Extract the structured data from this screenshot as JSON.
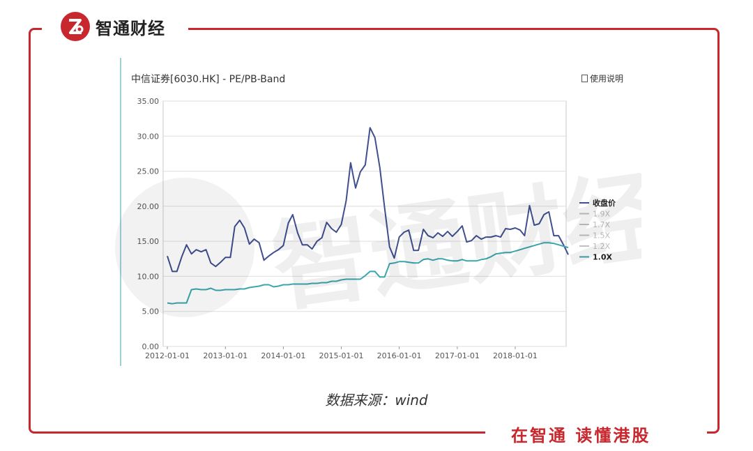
{
  "brand": {
    "name": "智通财经",
    "logo_icon": "zhitong-logo-icon"
  },
  "slogan": "在智通 读懂港股",
  "source_label": "数据来源：wind",
  "chart_header": {
    "title": "中信证券[6030.HK] - PE/PB-Band",
    "manual_label": "使用说明"
  },
  "watermark": {
    "text": "智通财经"
  },
  "colors": {
    "accent": "#c8282d",
    "close": "#3f4f8f",
    "band": "#3aa6ad",
    "faded": "#c0c0c0"
  },
  "chart_data": {
    "type": "line",
    "title": "",
    "xlabel": "",
    "ylabel": "",
    "ylim": [
      0,
      35
    ],
    "yticks": [
      "0.00",
      "5.00",
      "10.00",
      "15.00",
      "20.00",
      "25.00",
      "30.00",
      "35.00"
    ],
    "xticks": [
      "2012-01-01",
      "2013-01-01",
      "2014-01-01",
      "2015-01-01",
      "2016-01-01",
      "2017-01-01",
      "2018-01-01"
    ],
    "x_start": "2012-01-01",
    "x_end": "2018-12-01",
    "grid": true,
    "legend_position": "right",
    "legend": [
      {
        "name": "收盘价",
        "active": true
      },
      {
        "name": "1.9X",
        "active": false
      },
      {
        "name": "1.7X",
        "active": false
      },
      {
        "name": "1.5X",
        "active": false
      },
      {
        "name": "1.2X",
        "active": false
      },
      {
        "name": "1.0X",
        "active": true
      }
    ],
    "series": [
      {
        "name": "收盘价",
        "values": [
          [
            "2012-01-01",
            12.9
          ],
          [
            "2012-02-01",
            10.7
          ],
          [
            "2012-03-01",
            10.7
          ],
          [
            "2012-04-01",
            12.8
          ],
          [
            "2012-05-01",
            14.5
          ],
          [
            "2012-06-01",
            13.2
          ],
          [
            "2012-07-01",
            13.8
          ],
          [
            "2012-08-01",
            13.5
          ],
          [
            "2012-09-01",
            13.8
          ],
          [
            "2012-10-01",
            11.9
          ],
          [
            "2012-11-01",
            11.4
          ],
          [
            "2012-12-01",
            12.0
          ],
          [
            "2013-01-01",
            12.7
          ],
          [
            "2013-02-01",
            12.7
          ],
          [
            "2013-03-01",
            17.1
          ],
          [
            "2013-04-01",
            18.0
          ],
          [
            "2013-05-01",
            16.9
          ],
          [
            "2013-06-01",
            14.6
          ],
          [
            "2013-07-01",
            15.3
          ],
          [
            "2013-08-01",
            14.8
          ],
          [
            "2013-09-01",
            12.3
          ],
          [
            "2013-10-01",
            12.9
          ],
          [
            "2013-11-01",
            13.4
          ],
          [
            "2013-12-01",
            13.8
          ],
          [
            "2014-01-01",
            14.4
          ],
          [
            "2014-02-01",
            17.6
          ],
          [
            "2014-03-01",
            18.8
          ],
          [
            "2014-04-01",
            16.2
          ],
          [
            "2014-05-01",
            14.5
          ],
          [
            "2014-06-01",
            14.5
          ],
          [
            "2014-07-01",
            13.9
          ],
          [
            "2014-08-01",
            15.0
          ],
          [
            "2014-09-01",
            15.5
          ],
          [
            "2014-10-01",
            17.7
          ],
          [
            "2014-11-01",
            16.8
          ],
          [
            "2014-12-01",
            16.3
          ],
          [
            "2015-01-01",
            17.4
          ],
          [
            "2015-02-01",
            20.8
          ],
          [
            "2015-03-01",
            26.2
          ],
          [
            "2015-04-01",
            22.6
          ],
          [
            "2015-05-01",
            24.9
          ],
          [
            "2015-06-01",
            25.9
          ],
          [
            "2015-07-01",
            31.2
          ],
          [
            "2015-08-01",
            29.8
          ],
          [
            "2015-09-01",
            25.5
          ],
          [
            "2015-10-01",
            19.8
          ],
          [
            "2015-11-01",
            14.2
          ],
          [
            "2015-12-01",
            12.6
          ],
          [
            "2016-01-01",
            15.6
          ],
          [
            "2016-02-01",
            16.3
          ],
          [
            "2016-03-01",
            16.6
          ],
          [
            "2016-04-01",
            13.7
          ],
          [
            "2016-05-01",
            13.7
          ],
          [
            "2016-06-01",
            16.7
          ],
          [
            "2016-07-01",
            15.8
          ],
          [
            "2016-08-01",
            15.5
          ],
          [
            "2016-09-01",
            16.2
          ],
          [
            "2016-10-01",
            15.7
          ],
          [
            "2016-11-01",
            16.4
          ],
          [
            "2016-12-01",
            15.7
          ],
          [
            "2017-01-01",
            16.4
          ],
          [
            "2017-02-01",
            17.2
          ],
          [
            "2017-03-01",
            14.9
          ],
          [
            "2017-04-01",
            15.1
          ],
          [
            "2017-05-01",
            15.8
          ],
          [
            "2017-06-01",
            15.3
          ],
          [
            "2017-07-01",
            15.6
          ],
          [
            "2017-08-01",
            15.6
          ],
          [
            "2017-09-01",
            15.8
          ],
          [
            "2017-10-01",
            15.6
          ],
          [
            "2017-11-01",
            16.8
          ],
          [
            "2017-12-01",
            16.7
          ],
          [
            "2018-01-01",
            16.9
          ],
          [
            "2018-02-01",
            16.6
          ],
          [
            "2018-03-01",
            15.8
          ],
          [
            "2018-04-01",
            20.1
          ],
          [
            "2018-05-01",
            17.3
          ],
          [
            "2018-06-01",
            17.5
          ],
          [
            "2018-07-01",
            18.8
          ],
          [
            "2018-08-01",
            19.2
          ],
          [
            "2018-09-01",
            15.8
          ],
          [
            "2018-10-01",
            15.8
          ],
          [
            "2018-11-01",
            14.5
          ],
          [
            "2018-12-01",
            13.1
          ]
        ]
      },
      {
        "name": "1.0X",
        "values": [
          [
            "2012-01-01",
            6.2
          ],
          [
            "2012-02-01",
            6.1
          ],
          [
            "2012-03-01",
            6.2
          ],
          [
            "2012-04-01",
            6.2
          ],
          [
            "2012-05-01",
            6.2
          ],
          [
            "2012-06-01",
            8.1
          ],
          [
            "2012-07-01",
            8.2
          ],
          [
            "2012-08-01",
            8.1
          ],
          [
            "2012-09-01",
            8.1
          ],
          [
            "2012-10-01",
            8.3
          ],
          [
            "2012-11-01",
            8.0
          ],
          [
            "2012-12-01",
            8.0
          ],
          [
            "2013-01-01",
            8.1
          ],
          [
            "2013-02-01",
            8.1
          ],
          [
            "2013-03-01",
            8.1
          ],
          [
            "2013-04-01",
            8.2
          ],
          [
            "2013-05-01",
            8.2
          ],
          [
            "2013-06-01",
            8.4
          ],
          [
            "2013-07-01",
            8.5
          ],
          [
            "2013-08-01",
            8.6
          ],
          [
            "2013-09-01",
            8.8
          ],
          [
            "2013-10-01",
            8.8
          ],
          [
            "2013-11-01",
            8.5
          ],
          [
            "2013-12-01",
            8.6
          ],
          [
            "2014-01-01",
            8.8
          ],
          [
            "2014-02-01",
            8.8
          ],
          [
            "2014-03-01",
            8.9
          ],
          [
            "2014-04-01",
            8.9
          ],
          [
            "2014-05-01",
            8.9
          ],
          [
            "2014-06-01",
            8.9
          ],
          [
            "2014-07-01",
            9.0
          ],
          [
            "2014-08-01",
            9.0
          ],
          [
            "2014-09-01",
            9.1
          ],
          [
            "2014-10-01",
            9.1
          ],
          [
            "2014-11-01",
            9.3
          ],
          [
            "2014-12-01",
            9.3
          ],
          [
            "2015-01-01",
            9.5
          ],
          [
            "2015-02-01",
            9.6
          ],
          [
            "2015-03-01",
            9.6
          ],
          [
            "2015-04-01",
            9.6
          ],
          [
            "2015-05-01",
            9.6
          ],
          [
            "2015-06-01",
            10.1
          ],
          [
            "2015-07-01",
            10.7
          ],
          [
            "2015-08-01",
            10.7
          ],
          [
            "2015-09-01",
            9.9
          ],
          [
            "2015-10-01",
            9.9
          ],
          [
            "2015-11-01",
            11.8
          ],
          [
            "2015-12-01",
            11.9
          ],
          [
            "2016-01-01",
            12.1
          ],
          [
            "2016-02-01",
            12.1
          ],
          [
            "2016-03-01",
            12.0
          ],
          [
            "2016-04-01",
            11.9
          ],
          [
            "2016-05-01",
            11.9
          ],
          [
            "2016-06-01",
            12.4
          ],
          [
            "2016-07-01",
            12.5
          ],
          [
            "2016-08-01",
            12.3
          ],
          [
            "2016-09-01",
            12.5
          ],
          [
            "2016-10-01",
            12.5
          ],
          [
            "2016-11-01",
            12.3
          ],
          [
            "2016-12-01",
            12.2
          ],
          [
            "2017-01-01",
            12.2
          ],
          [
            "2017-02-01",
            12.4
          ],
          [
            "2017-03-01",
            12.2
          ],
          [
            "2017-04-01",
            12.2
          ],
          [
            "2017-05-01",
            12.2
          ],
          [
            "2017-06-01",
            12.4
          ],
          [
            "2017-07-01",
            12.5
          ],
          [
            "2017-08-01",
            12.8
          ],
          [
            "2017-09-01",
            13.2
          ],
          [
            "2017-10-01",
            13.3
          ],
          [
            "2017-11-01",
            13.4
          ],
          [
            "2017-12-01",
            13.4
          ],
          [
            "2018-01-01",
            13.6
          ],
          [
            "2018-02-01",
            13.8
          ],
          [
            "2018-03-01",
            14.0
          ],
          [
            "2018-04-01",
            14.2
          ],
          [
            "2018-05-01",
            14.4
          ],
          [
            "2018-06-01",
            14.6
          ],
          [
            "2018-07-01",
            14.8
          ],
          [
            "2018-08-01",
            14.8
          ],
          [
            "2018-09-01",
            14.7
          ],
          [
            "2018-10-01",
            14.5
          ],
          [
            "2018-11-01",
            14.3
          ],
          [
            "2018-12-01",
            14.1
          ]
        ]
      }
    ]
  }
}
